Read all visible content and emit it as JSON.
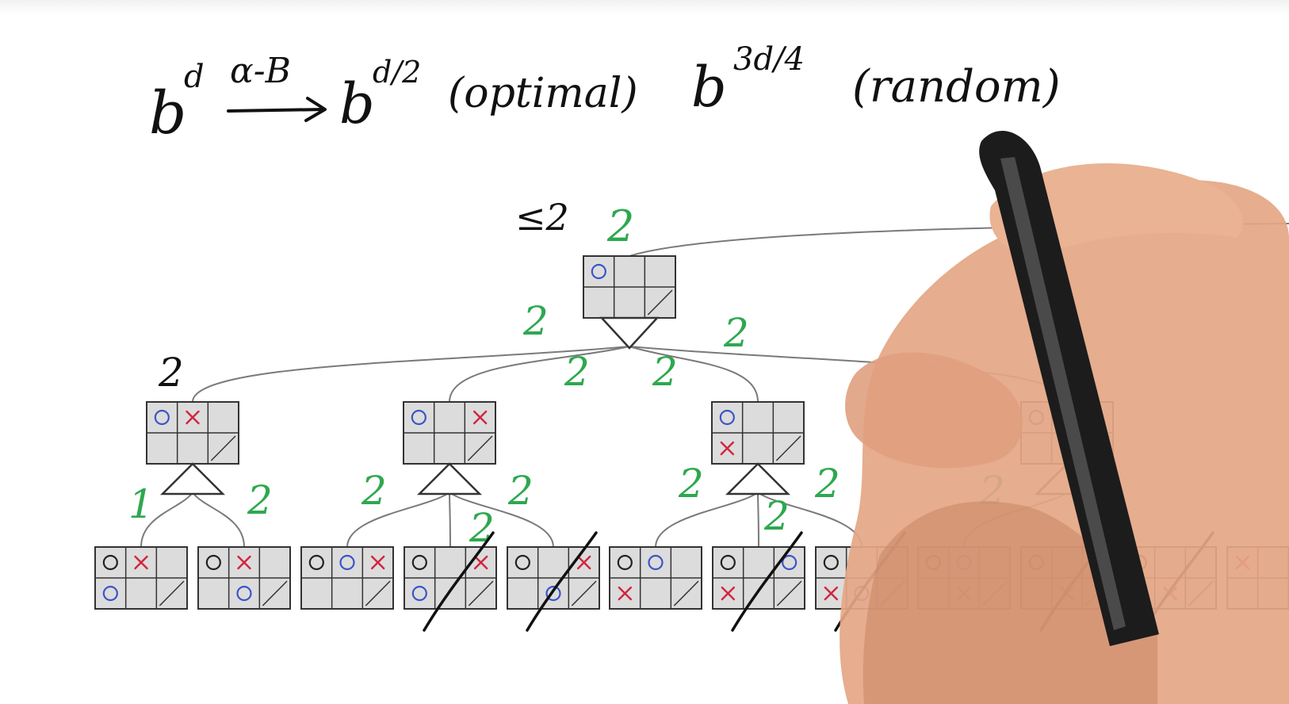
{
  "formula": {
    "base_left": "b",
    "exp_left": "d",
    "arrow_label": "α-B",
    "base_mid": "b",
    "exp_mid": "d/2",
    "mid_note": "(optimal)",
    "base_right": "b",
    "exp_right": "3d/4",
    "right_note": "(random)"
  },
  "annotations": {
    "root_bound": "≤2",
    "root_value": "2",
    "left_node_value": "2"
  },
  "edge_values": {
    "root_left": "2",
    "root_midleft": "2",
    "root_midright": "2",
    "root_right": "2",
    "a_left": "1",
    "a_right": "2",
    "b_left": "2",
    "b_mid": "2",
    "b_right": "2",
    "c_left": "2",
    "c_mid": "2",
    "c_right": "2",
    "d_left": "2"
  },
  "colors": {
    "board_fill": "#dcdcdc",
    "board_line": "#333333",
    "o_player": "#3a55c8",
    "x_player": "#d1253d",
    "note_green": "#2ea84f",
    "ink": "#111111",
    "edge": "#7a7a7a",
    "skin": "#e7ab8a"
  },
  "boards": {
    "root": [
      "o",
      "",
      "",
      "",
      "",
      ""
    ],
    "level1": [
      [
        "o",
        "x",
        "",
        "",
        "",
        ""
      ],
      [
        "o",
        "",
        "x",
        "",
        "",
        ""
      ],
      [
        "o",
        "",
        "",
        "x",
        "",
        ""
      ],
      [
        "o",
        "",
        "",
        "",
        "",
        ""
      ]
    ],
    "leaves": [
      [
        "o",
        "x",
        "",
        "o",
        "",
        ""
      ],
      [
        "o",
        "x",
        "",
        "",
        "o",
        ""
      ],
      [
        "o",
        "o",
        "x",
        "",
        "",
        ""
      ],
      [
        "o",
        "",
        "x",
        "o",
        "",
        ""
      ],
      [
        "o",
        "",
        "x",
        "",
        "o",
        ""
      ],
      [
        "o",
        "o",
        "",
        "x",
        "",
        ""
      ],
      [
        "o",
        "",
        "o",
        "x",
        "",
        ""
      ],
      [
        "o",
        "",
        "",
        "x",
        "o",
        ""
      ],
      [
        "o",
        "o",
        "",
        "",
        "x",
        ""
      ],
      [
        "o",
        "",
        "",
        "",
        "x",
        ""
      ],
      [
        "o",
        "",
        "",
        "o",
        "x",
        ""
      ],
      [
        "x",
        "",
        "",
        "",
        "",
        ""
      ]
    ],
    "pruned_leaves": [
      3,
      4,
      6,
      7,
      9,
      10
    ]
  }
}
